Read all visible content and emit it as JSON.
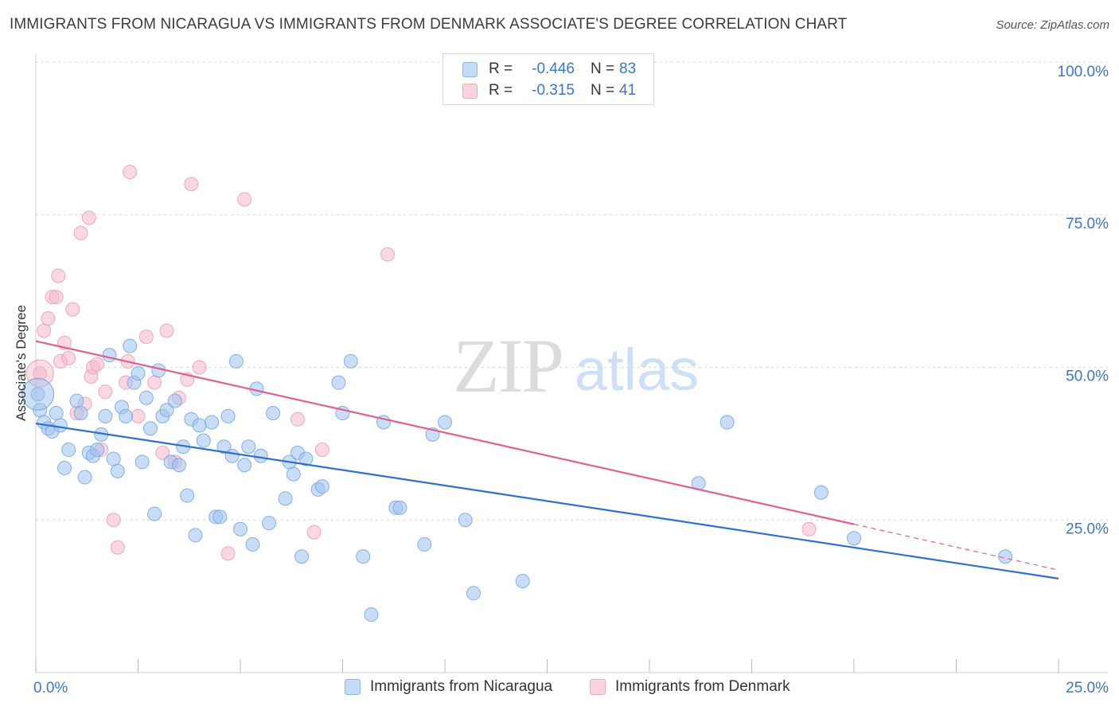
{
  "header": {
    "title": "IMMIGRANTS FROM NICARAGUA VS IMMIGRANTS FROM DENMARK ASSOCIATE'S DEGREE CORRELATION CHART",
    "source": "Source: ZipAtlas.com"
  },
  "watermark": {
    "zip": "ZIP",
    "atlas": "atlas"
  },
  "legend": {
    "rows": [
      {
        "r_label": "R =",
        "r_value": "-0.446",
        "n_label": "N =",
        "n_value": "83",
        "color": "#9ec1ee"
      },
      {
        "r_label": "R =",
        "r_value": "-0.315",
        "n_label": "N =",
        "n_value": "41",
        "color": "#f5b8cb"
      }
    ]
  },
  "bottom_legend": {
    "items": [
      {
        "label": "Immigrants from Nicaragua",
        "color": "#9ec1ee"
      },
      {
        "label": "Immigrants from Denmark",
        "color": "#f5b8cb"
      }
    ]
  },
  "colors": {
    "nicaragua_fill": "#9ec1ee",
    "nicaragua_line": "#2f6fd0",
    "denmark_fill": "#f5b8cb",
    "denmark_line": "#e0608e",
    "tick_label": "#3a76c9",
    "grid": "#d9d9d9"
  },
  "chart_data": {
    "type": "scatter",
    "title": "IMMIGRANTS FROM NICARAGUA VS IMMIGRANTS FROM DENMARK ASSOCIATE'S DEGREE CORRELATION CHART",
    "xlabel": "",
    "ylabel": "Associate's Degree",
    "xlim": [
      0,
      25
    ],
    "ylim": [
      0,
      100
    ],
    "x_tick_labels": [
      {
        "value": 0,
        "label": "0.0%"
      },
      {
        "value": 25,
        "label": "25.0%"
      }
    ],
    "y_tick_labels": [
      {
        "value": 25,
        "label": "25.0%"
      },
      {
        "value": 50,
        "label": "50.0%"
      },
      {
        "value": 75,
        "label": "75.0%"
      },
      {
        "value": 100,
        "label": "100.0%"
      }
    ],
    "grid": true,
    "legend_position": "top-center",
    "series": [
      {
        "name": "Immigrants from Nicaragua",
        "r": -0.446,
        "n": 83,
        "trend": {
          "x": [
            0,
            25
          ],
          "y": [
            40.8,
            15.4
          ]
        },
        "points": [
          [
            0.05,
            45.6
          ],
          [
            0.1,
            43
          ],
          [
            0.2,
            41
          ],
          [
            0.3,
            40
          ],
          [
            0.4,
            39.5
          ],
          [
            0.5,
            42.5
          ],
          [
            0.6,
            40.5
          ],
          [
            0.7,
            33.5
          ],
          [
            0.8,
            36.5
          ],
          [
            1.0,
            44.5
          ],
          [
            1.1,
            42.5
          ],
          [
            1.2,
            32
          ],
          [
            1.3,
            36
          ],
          [
            1.4,
            35.5
          ],
          [
            1.5,
            36.5
          ],
          [
            1.6,
            39
          ],
          [
            1.7,
            42
          ],
          [
            1.8,
            52
          ],
          [
            1.9,
            35
          ],
          [
            2.0,
            33
          ],
          [
            2.1,
            43.5
          ],
          [
            2.2,
            42
          ],
          [
            2.3,
            53.5
          ],
          [
            2.4,
            47.5
          ],
          [
            2.5,
            49
          ],
          [
            2.6,
            34.5
          ],
          [
            2.7,
            45
          ],
          [
            2.8,
            40
          ],
          [
            2.9,
            26
          ],
          [
            3.0,
            49.5
          ],
          [
            3.1,
            42
          ],
          [
            3.2,
            43
          ],
          [
            3.3,
            34.5
          ],
          [
            3.4,
            44.5
          ],
          [
            3.5,
            34
          ],
          [
            3.6,
            37
          ],
          [
            3.7,
            29
          ],
          [
            3.8,
            41.5
          ],
          [
            3.9,
            22.5
          ],
          [
            4.0,
            40.5
          ],
          [
            4.1,
            38
          ],
          [
            4.3,
            41
          ],
          [
            4.4,
            25.5
          ],
          [
            4.5,
            25.5
          ],
          [
            4.6,
            37
          ],
          [
            4.7,
            42
          ],
          [
            4.8,
            35.5
          ],
          [
            4.9,
            51
          ],
          [
            5.0,
            23.5
          ],
          [
            5.1,
            34
          ],
          [
            5.2,
            37
          ],
          [
            5.3,
            21
          ],
          [
            5.4,
            46.5
          ],
          [
            5.5,
            35.5
          ],
          [
            5.7,
            24.5
          ],
          [
            5.8,
            42.5
          ],
          [
            6.1,
            28.5
          ],
          [
            6.2,
            34.5
          ],
          [
            6.3,
            32.5
          ],
          [
            6.4,
            36
          ],
          [
            6.5,
            19
          ],
          [
            6.6,
            35
          ],
          [
            6.9,
            30
          ],
          [
            7.0,
            30.5
          ],
          [
            7.4,
            47.5
          ],
          [
            7.5,
            42.5
          ],
          [
            7.7,
            51
          ],
          [
            8.0,
            19
          ],
          [
            8.2,
            9.5
          ],
          [
            8.5,
            41
          ],
          [
            8.8,
            27
          ],
          [
            8.9,
            27
          ],
          [
            9.5,
            21
          ],
          [
            9.7,
            39
          ],
          [
            10.0,
            41
          ],
          [
            10.5,
            25
          ],
          [
            10.7,
            13
          ],
          [
            11.9,
            15
          ],
          [
            16.2,
            31
          ],
          [
            16.9,
            41
          ],
          [
            19.2,
            29.5
          ],
          [
            20.0,
            22
          ],
          [
            23.7,
            19
          ]
        ]
      },
      {
        "name": "Immigrants from Denmark",
        "r": -0.315,
        "n": 41,
        "trend": {
          "x": [
            0,
            20
          ],
          "y": [
            54.3,
            24.3
          ]
        },
        "trend_dashed": {
          "x": [
            20,
            25
          ],
          "y": [
            24.3,
            16.8
          ]
        },
        "points": [
          [
            0.1,
            49
          ],
          [
            0.2,
            56
          ],
          [
            0.3,
            58
          ],
          [
            0.4,
            61.5
          ],
          [
            0.5,
            61.5
          ],
          [
            0.55,
            65
          ],
          [
            0.6,
            51
          ],
          [
            0.7,
            54
          ],
          [
            0.8,
            51.5
          ],
          [
            0.9,
            59.5
          ],
          [
            1.0,
            42.5
          ],
          [
            1.1,
            72
          ],
          [
            1.2,
            44
          ],
          [
            1.3,
            74.5
          ],
          [
            1.35,
            48.5
          ],
          [
            1.4,
            50
          ],
          [
            1.5,
            50.5
          ],
          [
            1.6,
            36.5
          ],
          [
            1.7,
            46
          ],
          [
            1.9,
            25
          ],
          [
            2.0,
            20.5
          ],
          [
            2.2,
            47.5
          ],
          [
            2.25,
            51
          ],
          [
            2.3,
            82
          ],
          [
            2.5,
            42
          ],
          [
            2.7,
            55
          ],
          [
            2.9,
            47.5
          ],
          [
            3.1,
            36
          ],
          [
            3.2,
            56
          ],
          [
            3.4,
            34.5
          ],
          [
            3.5,
            45
          ],
          [
            3.7,
            48
          ],
          [
            3.8,
            80
          ],
          [
            4.0,
            50
          ],
          [
            4.7,
            19.5
          ],
          [
            5.1,
            77.5
          ],
          [
            6.4,
            41.5
          ],
          [
            6.8,
            23
          ],
          [
            7.0,
            36.5
          ],
          [
            8.6,
            68.5
          ],
          [
            18.9,
            23.5
          ]
        ]
      }
    ]
  }
}
